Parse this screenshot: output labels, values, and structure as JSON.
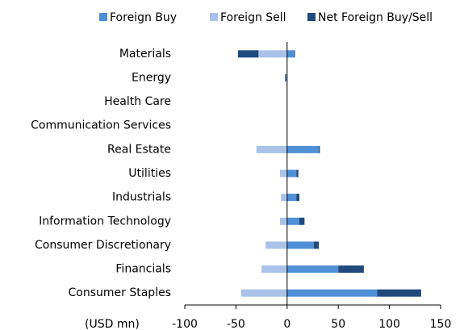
{
  "chart_data": {
    "type": "bar",
    "orientation": "horizontal",
    "stacked": true,
    "x_label": "(USD mn)",
    "categories": [
      "Materials",
      "Energy",
      "Health Care",
      "Communication Services",
      "Real Estate",
      "Utilities",
      "Industrials",
      "Information Technology",
      "Consumer Discretionary",
      "Financials",
      "Consumer Staples"
    ],
    "series": [
      {
        "name": "Foreign Buy",
        "color": "#4f8fd6",
        "values": [
          8,
          0,
          0,
          0,
          31,
          9,
          9,
          12,
          26,
          50,
          88
        ]
      },
      {
        "name": "Foreign Sell",
        "color": "#a9c2ea",
        "values": [
          -28,
          -1,
          0,
          0,
          -30,
          -7,
          -6,
          -7,
          -21,
          -25,
          -45
        ]
      },
      {
        "name": "Net Foreign Buy/Sell",
        "color": "#1f4a7e",
        "values": [
          -20,
          -1,
          0,
          0,
          1,
          2,
          3,
          5,
          5,
          25,
          43
        ]
      }
    ],
    "xlim": [
      -100,
      150
    ],
    "xticks": [
      -100,
      -50,
      0,
      50,
      100,
      150
    ],
    "legend": "top"
  }
}
